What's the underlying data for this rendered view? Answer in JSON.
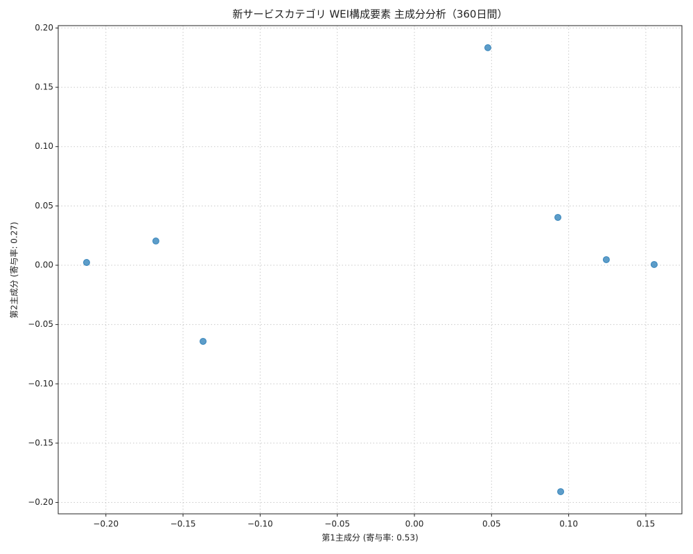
{
  "chart_data": {
    "type": "scatter",
    "title": "新サービスカテゴリ WEI構成要素 主成分分析（360日間）",
    "x_label": "第1主成分 (寄与率: 0.53)",
    "y_label": "第2主成分 (寄与率: 0.27)",
    "color": "#1f77b4",
    "grid": true,
    "x": [
      -0.2125,
      -0.1676,
      -0.137,
      0.0476,
      0.093,
      0.1244,
      0.1554,
      0.0948
    ],
    "values": [
      0.0023,
      0.0204,
      -0.0642,
      0.1834,
      0.0403,
      0.0047,
      0.0006,
      -0.1909
    ],
    "xlim": [
      -0.2309,
      0.1734
    ],
    "ylim": [
      -0.2096,
      0.202
    ],
    "xticks": [
      {
        "value": -0.2,
        "label": "−0.20"
      },
      {
        "value": -0.15,
        "label": "−0.15"
      },
      {
        "value": -0.1,
        "label": "−0.10"
      },
      {
        "value": -0.05,
        "label": "−0.05"
      },
      {
        "value": 0,
        "label": "0.00"
      },
      {
        "value": 0.05,
        "label": "0.05"
      },
      {
        "value": 0.1,
        "label": "0.10"
      },
      {
        "value": 0.15,
        "label": "0.15"
      }
    ],
    "yticks": [
      {
        "value": -0.2,
        "label": "−0.20"
      },
      {
        "value": -0.15,
        "label": "−0.15"
      },
      {
        "value": -0.1,
        "label": "−0.10"
      },
      {
        "value": -0.05,
        "label": "−0.05"
      },
      {
        "value": 0,
        "label": "0.00"
      },
      {
        "value": 0.05,
        "label": "0.05"
      },
      {
        "value": 0.1,
        "label": "0.10"
      },
      {
        "value": 0.15,
        "label": "0.15"
      },
      {
        "value": 0.2,
        "label": "0.20"
      }
    ]
  }
}
